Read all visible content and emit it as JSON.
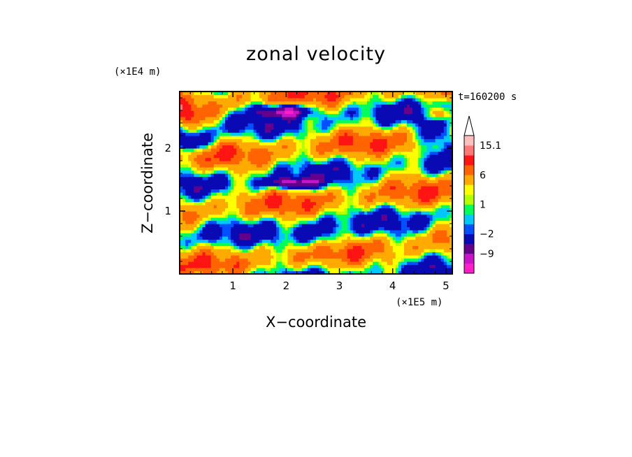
{
  "chart_data": {
    "type": "heatmap",
    "title": "zonal velocity",
    "xlabel": "X−coordinate",
    "ylabel": "Z−coordinate",
    "x_unit": "(×1E5 m)",
    "y_unit": "(×1E4 m)",
    "annotation": "t=160200 s",
    "xlim": [
      0,
      5.12
    ],
    "ylim": [
      0,
      2.9
    ],
    "x_ticks": [
      1,
      2,
      3,
      4,
      5
    ],
    "y_ticks": [
      1,
      2
    ],
    "colorbar": {
      "levels": [
        -15,
        -12,
        -9,
        -6,
        -2,
        -1,
        0,
        1,
        1.5,
        3,
        6,
        9,
        12,
        15.1
      ],
      "colors": [
        "#ff1ec8",
        "#c814c8",
        "#64008c",
        "#0a0ab4",
        "#0050ff",
        "#00c8ff",
        "#00ff5a",
        "#b4ff00",
        "#ffff00",
        "#ffaa00",
        "#ff6400",
        "#ff1414",
        "#ff7878",
        "#ffbebe"
      ],
      "tick_labels": [
        {
          "value": "15.1",
          "level": 15.1
        },
        {
          "value": "6",
          "level": 6
        },
        {
          "value": "1",
          "level": 1
        },
        {
          "value": "−2",
          "level": -2
        },
        {
          "value": "−9",
          "level": -9
        }
      ],
      "extend": "max"
    }
  }
}
